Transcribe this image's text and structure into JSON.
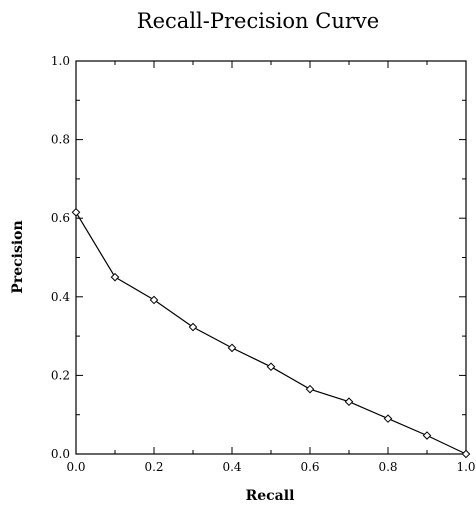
{
  "chart_data": {
    "type": "line",
    "title": "Recall-Precision Curve",
    "xlabel": "Recall",
    "ylabel": "Precision",
    "xlim": [
      0.0,
      1.0
    ],
    "ylim": [
      0.0,
      1.0
    ],
    "x_ticks": [
      "0.0",
      "0.2",
      "0.4",
      "0.6",
      "0.8",
      "1.0"
    ],
    "y_ticks": [
      "0.0",
      "0.2",
      "0.4",
      "0.6",
      "0.8",
      "1.0"
    ],
    "grid": false,
    "marker": "diamond",
    "series": [
      {
        "x": [
          0.0,
          0.1,
          0.2,
          0.3,
          0.4,
          0.5,
          0.6,
          0.7,
          0.8,
          0.9,
          1.0
        ],
        "y": [
          0.615,
          0.45,
          0.392,
          0.323,
          0.27,
          0.222,
          0.165,
          0.133,
          0.09,
          0.047,
          0.0
        ]
      }
    ]
  }
}
